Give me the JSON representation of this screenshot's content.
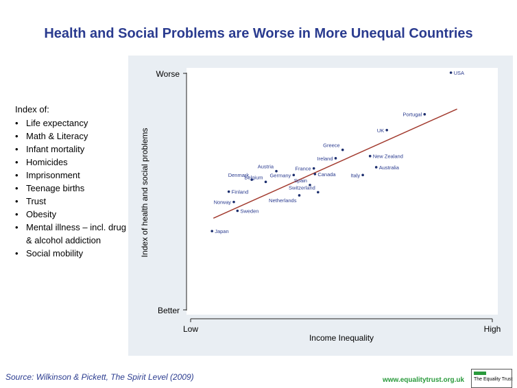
{
  "title": "Health and Social Problems are Worse in More Unequal Countries",
  "index_heading": "Index of:",
  "index_items": [
    "Life expectancy",
    "Math & Literacy",
    "Infant mortality",
    "Homicides",
    "Imprisonment",
    "Teenage births",
    "Trust",
    "Obesity",
    "Mental illness – incl. drug & alcohol addiction",
    "Social mobility"
  ],
  "source": "Source: Wilkinson & Pickett, The Spirit Level (2009)",
  "website": "www.equalitytrust.org.uk",
  "logo_text": "The Equality Trust",
  "colors": {
    "title": "#2a3b8f",
    "label": "#2a3b8f",
    "trend_line": "#a23a2e",
    "point": "#1c2e6e",
    "panel": "#e9eef3",
    "site": "#2a9a3c"
  },
  "chart_data": {
    "type": "scatter",
    "xlabel": "Income Inequality",
    "ylabel": "Index of health and social problems",
    "x_ticks": [
      "Low",
      "High"
    ],
    "y_ticks": [
      "Better",
      "Worse"
    ],
    "xlim": [
      0,
      100
    ],
    "ylim": [
      0,
      100
    ],
    "grid": false,
    "points": [
      {
        "label": "USA",
        "x": 92.8,
        "y": 100.0
      },
      {
        "label": "Portugal",
        "x": 83.4,
        "y": 78.7
      },
      {
        "label": "UK",
        "x": 69.9,
        "y": 70.6
      },
      {
        "label": "New Zealand",
        "x": 63.9,
        "y": 57.3
      },
      {
        "label": "Greece",
        "x": 54.1,
        "y": 60.5
      },
      {
        "label": "Ireland",
        "x": 51.6,
        "y": 56.2
      },
      {
        "label": "Australia",
        "x": 66.1,
        "y": 51.6
      },
      {
        "label": "Italy",
        "x": 61.3,
        "y": 47.6
      },
      {
        "label": "France",
        "x": 43.8,
        "y": 51.0
      },
      {
        "label": "Canada",
        "x": 44.2,
        "y": 48.1
      },
      {
        "label": "Austria",
        "x": 30.4,
        "y": 49.6
      },
      {
        "label": "Germany",
        "x": 36.6,
        "y": 47.6
      },
      {
        "label": "Denmark",
        "x": 21.6,
        "y": 45.2
      },
      {
        "label": "Spain",
        "x": 42.4,
        "y": 42.5
      },
      {
        "label": "Switzerland",
        "x": 45.3,
        "y": 38.8
      },
      {
        "label": "Belgium",
        "x": 26.6,
        "y": 44.1
      },
      {
        "label": "Netherlands",
        "x": 38.6,
        "y": 37.2
      },
      {
        "label": "Finland",
        "x": 13.4,
        "y": 39.1
      },
      {
        "label": "Norway",
        "x": 15.2,
        "y": 33.8
      },
      {
        "label": "Sweden",
        "x": 16.5,
        "y": 29.3
      },
      {
        "label": "Japan",
        "x": 7.4,
        "y": 18.9
      }
    ],
    "trendline": {
      "x": [
        7.9,
        95.0
      ],
      "y": [
        25.5,
        81.4
      ]
    }
  }
}
